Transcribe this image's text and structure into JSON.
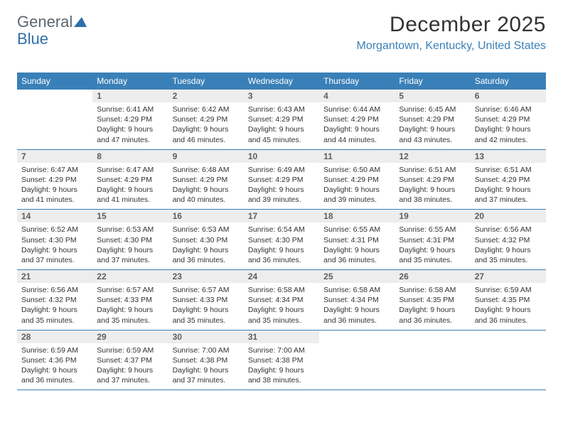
{
  "logo": {
    "text_general": "General",
    "text_blue": "Blue"
  },
  "title": "December 2025",
  "location": "Morgantown, Kentucky, United States",
  "colors": {
    "header_blue": "#3a80b8",
    "location_text": "#3a80b8",
    "logo_gray": "#5a6570",
    "logo_blue": "#2f6fa8",
    "daynum_bg": "#ededed",
    "border": "#3a80b8",
    "text": "#333333"
  },
  "day_names": [
    "Sunday",
    "Monday",
    "Tuesday",
    "Wednesday",
    "Thursday",
    "Friday",
    "Saturday"
  ],
  "weeks": [
    [
      {
        "num": "",
        "sunrise": "",
        "sunset": "",
        "daylight": "",
        "empty": true
      },
      {
        "num": "1",
        "sunrise": "Sunrise: 6:41 AM",
        "sunset": "Sunset: 4:29 PM",
        "daylight": "Daylight: 9 hours and 47 minutes."
      },
      {
        "num": "2",
        "sunrise": "Sunrise: 6:42 AM",
        "sunset": "Sunset: 4:29 PM",
        "daylight": "Daylight: 9 hours and 46 minutes."
      },
      {
        "num": "3",
        "sunrise": "Sunrise: 6:43 AM",
        "sunset": "Sunset: 4:29 PM",
        "daylight": "Daylight: 9 hours and 45 minutes."
      },
      {
        "num": "4",
        "sunrise": "Sunrise: 6:44 AM",
        "sunset": "Sunset: 4:29 PM",
        "daylight": "Daylight: 9 hours and 44 minutes."
      },
      {
        "num": "5",
        "sunrise": "Sunrise: 6:45 AM",
        "sunset": "Sunset: 4:29 PM",
        "daylight": "Daylight: 9 hours and 43 minutes."
      },
      {
        "num": "6",
        "sunrise": "Sunrise: 6:46 AM",
        "sunset": "Sunset: 4:29 PM",
        "daylight": "Daylight: 9 hours and 42 minutes."
      }
    ],
    [
      {
        "num": "7",
        "sunrise": "Sunrise: 6:47 AM",
        "sunset": "Sunset: 4:29 PM",
        "daylight": "Daylight: 9 hours and 41 minutes."
      },
      {
        "num": "8",
        "sunrise": "Sunrise: 6:47 AM",
        "sunset": "Sunset: 4:29 PM",
        "daylight": "Daylight: 9 hours and 41 minutes."
      },
      {
        "num": "9",
        "sunrise": "Sunrise: 6:48 AM",
        "sunset": "Sunset: 4:29 PM",
        "daylight": "Daylight: 9 hours and 40 minutes."
      },
      {
        "num": "10",
        "sunrise": "Sunrise: 6:49 AM",
        "sunset": "Sunset: 4:29 PM",
        "daylight": "Daylight: 9 hours and 39 minutes."
      },
      {
        "num": "11",
        "sunrise": "Sunrise: 6:50 AM",
        "sunset": "Sunset: 4:29 PM",
        "daylight": "Daylight: 9 hours and 39 minutes."
      },
      {
        "num": "12",
        "sunrise": "Sunrise: 6:51 AM",
        "sunset": "Sunset: 4:29 PM",
        "daylight": "Daylight: 9 hours and 38 minutes."
      },
      {
        "num": "13",
        "sunrise": "Sunrise: 6:51 AM",
        "sunset": "Sunset: 4:29 PM",
        "daylight": "Daylight: 9 hours and 37 minutes."
      }
    ],
    [
      {
        "num": "14",
        "sunrise": "Sunrise: 6:52 AM",
        "sunset": "Sunset: 4:30 PM",
        "daylight": "Daylight: 9 hours and 37 minutes."
      },
      {
        "num": "15",
        "sunrise": "Sunrise: 6:53 AM",
        "sunset": "Sunset: 4:30 PM",
        "daylight": "Daylight: 9 hours and 37 minutes."
      },
      {
        "num": "16",
        "sunrise": "Sunrise: 6:53 AM",
        "sunset": "Sunset: 4:30 PM",
        "daylight": "Daylight: 9 hours and 36 minutes."
      },
      {
        "num": "17",
        "sunrise": "Sunrise: 6:54 AM",
        "sunset": "Sunset: 4:30 PM",
        "daylight": "Daylight: 9 hours and 36 minutes."
      },
      {
        "num": "18",
        "sunrise": "Sunrise: 6:55 AM",
        "sunset": "Sunset: 4:31 PM",
        "daylight": "Daylight: 9 hours and 36 minutes."
      },
      {
        "num": "19",
        "sunrise": "Sunrise: 6:55 AM",
        "sunset": "Sunset: 4:31 PM",
        "daylight": "Daylight: 9 hours and 35 minutes."
      },
      {
        "num": "20",
        "sunrise": "Sunrise: 6:56 AM",
        "sunset": "Sunset: 4:32 PM",
        "daylight": "Daylight: 9 hours and 35 minutes."
      }
    ],
    [
      {
        "num": "21",
        "sunrise": "Sunrise: 6:56 AM",
        "sunset": "Sunset: 4:32 PM",
        "daylight": "Daylight: 9 hours and 35 minutes."
      },
      {
        "num": "22",
        "sunrise": "Sunrise: 6:57 AM",
        "sunset": "Sunset: 4:33 PM",
        "daylight": "Daylight: 9 hours and 35 minutes."
      },
      {
        "num": "23",
        "sunrise": "Sunrise: 6:57 AM",
        "sunset": "Sunset: 4:33 PM",
        "daylight": "Daylight: 9 hours and 35 minutes."
      },
      {
        "num": "24",
        "sunrise": "Sunrise: 6:58 AM",
        "sunset": "Sunset: 4:34 PM",
        "daylight": "Daylight: 9 hours and 35 minutes."
      },
      {
        "num": "25",
        "sunrise": "Sunrise: 6:58 AM",
        "sunset": "Sunset: 4:34 PM",
        "daylight": "Daylight: 9 hours and 36 minutes."
      },
      {
        "num": "26",
        "sunrise": "Sunrise: 6:58 AM",
        "sunset": "Sunset: 4:35 PM",
        "daylight": "Daylight: 9 hours and 36 minutes."
      },
      {
        "num": "27",
        "sunrise": "Sunrise: 6:59 AM",
        "sunset": "Sunset: 4:35 PM",
        "daylight": "Daylight: 9 hours and 36 minutes."
      }
    ],
    [
      {
        "num": "28",
        "sunrise": "Sunrise: 6:59 AM",
        "sunset": "Sunset: 4:36 PM",
        "daylight": "Daylight: 9 hours and 36 minutes."
      },
      {
        "num": "29",
        "sunrise": "Sunrise: 6:59 AM",
        "sunset": "Sunset: 4:37 PM",
        "daylight": "Daylight: 9 hours and 37 minutes."
      },
      {
        "num": "30",
        "sunrise": "Sunrise: 7:00 AM",
        "sunset": "Sunset: 4:38 PM",
        "daylight": "Daylight: 9 hours and 37 minutes."
      },
      {
        "num": "31",
        "sunrise": "Sunrise: 7:00 AM",
        "sunset": "Sunset: 4:38 PM",
        "daylight": "Daylight: 9 hours and 38 minutes."
      },
      {
        "num": "",
        "sunrise": "",
        "sunset": "",
        "daylight": "",
        "empty": true
      },
      {
        "num": "",
        "sunrise": "",
        "sunset": "",
        "daylight": "",
        "empty": true
      },
      {
        "num": "",
        "sunrise": "",
        "sunset": "",
        "daylight": "",
        "empty": true
      }
    ]
  ]
}
